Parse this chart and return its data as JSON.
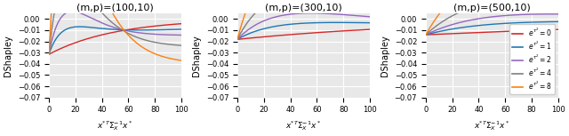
{
  "panels": [
    {
      "title": "(m,p)=(100,10)",
      "m": 100,
      "p": 10
    },
    {
      "title": "(m,p)=(300,10)",
      "m": 300,
      "p": 10
    },
    {
      "title": "(m,p)=(500,10)",
      "m": 500,
      "p": 10
    }
  ],
  "sigma2_values": [
    0,
    1,
    2,
    4,
    8
  ],
  "colors": [
    "#d62728",
    "#1f77b4",
    "#9467bd",
    "#7f7f7f",
    "#ff7f0e"
  ],
  "legend_labels": [
    "$e^{\\tau^2}=0$",
    "$e^{\\tau^2}=1$",
    "$e^{\\tau^2}=2$",
    "$e^{\\tau^2}=4$",
    "$e^{\\tau^2}=8$"
  ],
  "xlabel": "$x^{*T}\\Sigma_X^{-1}x^*$",
  "ylabel": "DShapley",
  "xlim": [
    0,
    100
  ],
  "ylim": [
    -0.07,
    0.005
  ],
  "yticks": [
    0.0,
    -0.01,
    -0.02,
    -0.03,
    -0.04,
    -0.05,
    -0.06,
    -0.07
  ],
  "xticks": [
    0,
    20,
    40,
    60,
    80,
    100
  ],
  "background_color": "#e8e8e8",
  "grid_color": "#ffffff",
  "figsize": [
    6.4,
    1.53
  ],
  "dpi": 100
}
